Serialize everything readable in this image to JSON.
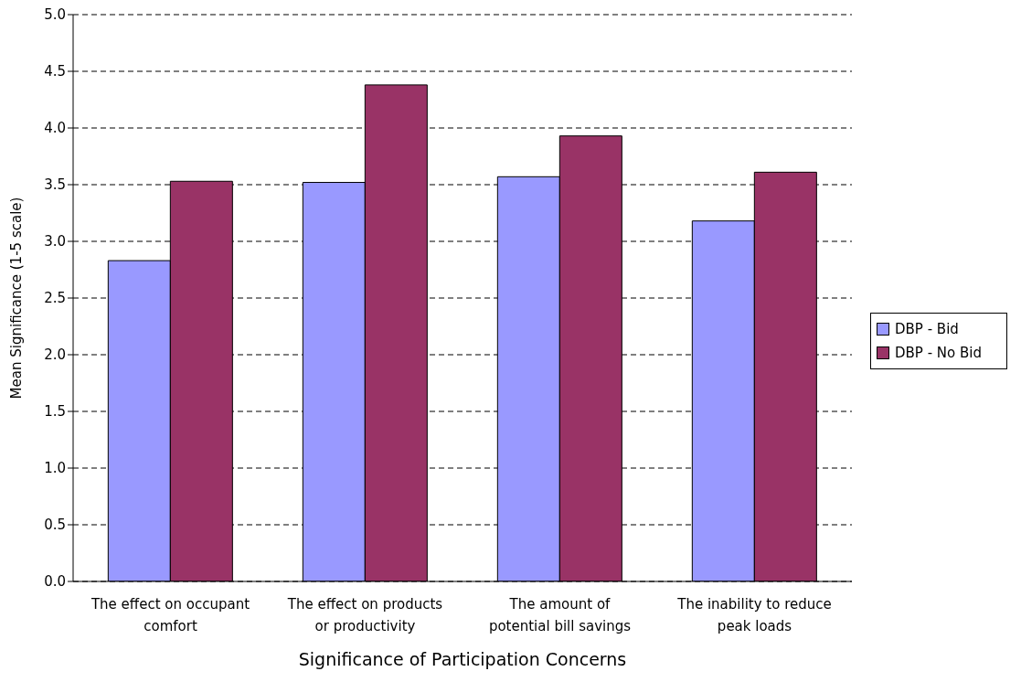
{
  "chart_data": {
    "type": "bar",
    "xlabel": "Significance of Participation Concerns",
    "ylabel": "Mean Significance (1-5 scale)",
    "categories": [
      "The effect on occupant comfort",
      "The effect on products or productivity",
      "The amount of potential bill savings",
      "The inability to reduce peak loads"
    ],
    "series": [
      {
        "name": "DBP - Bid",
        "color": "#9999ff",
        "values": [
          2.83,
          3.52,
          3.57,
          3.18
        ]
      },
      {
        "name": "DBP - No Bid",
        "color": "#993366",
        "values": [
          3.53,
          4.38,
          3.93,
          3.61
        ]
      }
    ],
    "ylim": [
      0,
      5
    ],
    "yticks": [
      {
        "value": 0,
        "label": "0.0"
      },
      {
        "value": 0.5,
        "label": "0.5"
      },
      {
        "value": 1,
        "label": "1.0"
      },
      {
        "value": 1.5,
        "label": "1.5"
      },
      {
        "value": 2,
        "label": "2.0"
      },
      {
        "value": 2.5,
        "label": "2.5"
      },
      {
        "value": 3,
        "label": "3.0"
      },
      {
        "value": 3.5,
        "label": "3.5"
      },
      {
        "value": 4,
        "label": "4.0"
      },
      {
        "value": 4.5,
        "label": "4.5"
      },
      {
        "value": 5,
        "label": "5.0"
      }
    ],
    "grid": "y",
    "legend": "right"
  }
}
